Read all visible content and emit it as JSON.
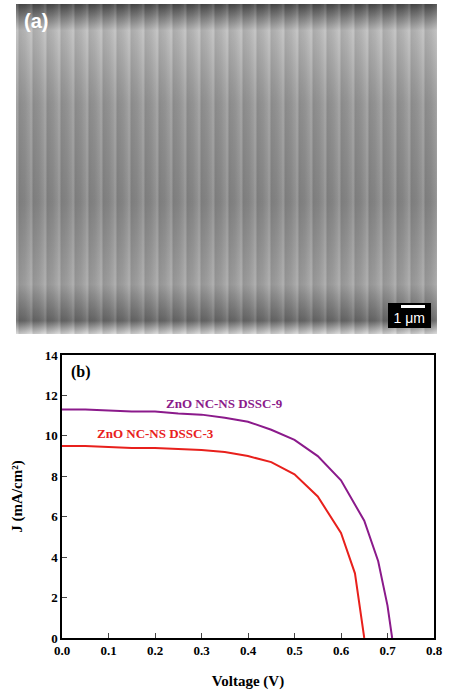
{
  "image_panel": {
    "label": "(a)",
    "scale_bar": "1 μm"
  },
  "chart_data": {
    "type": "line",
    "panel_label": "(b)",
    "x_label": "Voltage (V)",
    "y_label": "J (mA/cm²)",
    "xlim": [
      0,
      0.8
    ],
    "xticks": [
      {
        "value": 0,
        "label": "0.0"
      },
      0.1,
      0.2,
      0.3,
      0.4,
      0.5,
      0.6,
      0.7,
      0.8
    ],
    "ylim": [
      0,
      14
    ],
    "yticks": [
      0,
      2,
      4,
      6,
      8,
      10,
      12,
      14
    ],
    "grid": false,
    "series": [
      {
        "name": "ZnO NC-NS DSSC-9",
        "color": "#8b1a8b",
        "x": [
          0,
          0.05,
          0.1,
          0.15,
          0.2,
          0.25,
          0.3,
          0.35,
          0.4,
          0.45,
          0.5,
          0.55,
          0.6,
          0.65,
          0.68,
          0.7,
          0.71
        ],
        "values": [
          11.3,
          11.3,
          11.25,
          11.2,
          11.2,
          11.1,
          11.05,
          10.9,
          10.7,
          10.3,
          9.8,
          9.0,
          7.8,
          5.8,
          3.8,
          1.6,
          0
        ]
      },
      {
        "name": "ZnO NC-NS DSSC-3",
        "color": "#e8201c",
        "x": [
          0,
          0.05,
          0.1,
          0.15,
          0.2,
          0.25,
          0.3,
          0.35,
          0.4,
          0.45,
          0.5,
          0.55,
          0.6,
          0.63,
          0.65
        ],
        "values": [
          9.5,
          9.5,
          9.45,
          9.4,
          9.4,
          9.35,
          9.3,
          9.2,
          9.0,
          8.7,
          8.1,
          7.0,
          5.2,
          3.2,
          0
        ]
      }
    ]
  }
}
